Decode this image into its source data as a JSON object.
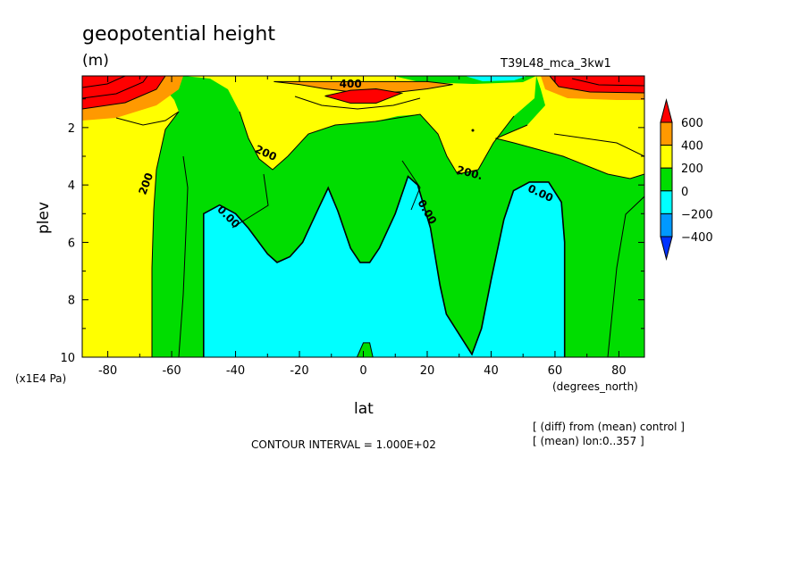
{
  "chart_data": {
    "type": "contour",
    "title": "geopotential height",
    "units": "(m)",
    "run_label": "T39L48_mca_3kw1",
    "xlabel": "lat",
    "x_units": "(degrees_north)",
    "ylabel": "plev",
    "y_units": "(x1E4 Pa)",
    "xlim": [
      -88,
      88
    ],
    "ylim": [
      10,
      0.2
    ],
    "x_ticks": [
      "-80",
      "-60",
      "-40",
      "-20",
      "0",
      "20",
      "40",
      "60",
      "80"
    ],
    "y_ticks": [
      "2",
      "4",
      "6",
      "8",
      "10"
    ],
    "contour_interval": "CONTOUR INTERVAL = 1.000E+02",
    "notes": [
      "[ (diff) from (mean) control ]",
      "[ (mean) lon:0..357 ]"
    ],
    "colorbar": {
      "labels": [
        "600",
        "400",
        "200",
        "0",
        "−200",
        "−400"
      ],
      "colors": [
        "#ff0000",
        "#ff9900",
        "#ffff00",
        "#00dd00",
        "#00ffff",
        "#0099ff",
        "#0033ff"
      ]
    },
    "contour_labels": [
      {
        "text": "400",
        "lat": -4,
        "plev": 0.6
      },
      {
        "text": "200",
        "lat": -31,
        "plev": 3.0
      },
      {
        "text": "200",
        "lat": -67,
        "plev": 4.0
      },
      {
        "text": "200.",
        "lat": 33,
        "plev": 3.7
      },
      {
        "text": "0.00",
        "lat": -43,
        "plev": 5.2
      },
      {
        "text": "0.00",
        "lat": 19,
        "plev": 5.0
      },
      {
        "text": "0.00",
        "lat": 55,
        "plev": 4.4
      }
    ],
    "regions": [
      {
        "level": "400 to 600",
        "color": "#ff9900",
        "points": [
          [
            -28,
            0.4
          ],
          [
            -20,
            0.5
          ],
          [
            -12,
            0.65
          ],
          [
            -4,
            0.75
          ],
          [
            4,
            0.8
          ],
          [
            12,
            0.75
          ],
          [
            20,
            0.65
          ],
          [
            28,
            0.5
          ],
          [
            20,
            0.4
          ],
          [
            -20,
            0.4
          ]
        ]
      },
      {
        "level": "above 600",
        "color": "#ff0000",
        "points": [
          [
            -12,
            0.9
          ],
          [
            -4,
            0.7
          ],
          [
            4,
            0.65
          ],
          [
            12,
            0.8
          ],
          [
            4,
            1.15
          ],
          [
            -4,
            1.15
          ]
        ]
      },
      {
        "level": "below 0",
        "color": "#00ffff",
        "points": [
          [
            -50,
            10
          ],
          [
            -50,
            5.0
          ],
          [
            -45,
            4.7
          ],
          [
            -40,
            5.0
          ],
          [
            -36,
            5.5
          ],
          [
            -30,
            6.4
          ],
          [
            -27,
            6.7
          ],
          [
            -23,
            6.5
          ],
          [
            -19,
            6.0
          ],
          [
            -14,
            4.8
          ],
          [
            -11,
            4.1
          ],
          [
            -8,
            4.9
          ],
          [
            -4,
            6.2
          ],
          [
            -1,
            6.7
          ],
          [
            2,
            6.7
          ],
          [
            5,
            6.2
          ],
          [
            10,
            5.0
          ],
          [
            14,
            3.7
          ],
          [
            17,
            4.0
          ],
          [
            21,
            5.5
          ],
          [
            24,
            7.5
          ],
          [
            26,
            8.5
          ],
          [
            30,
            9.2
          ],
          [
            34,
            9.9
          ],
          [
            37,
            9.0
          ],
          [
            40,
            7.3
          ],
          [
            44,
            5.2
          ],
          [
            47,
            4.2
          ],
          [
            52,
            3.9
          ],
          [
            58,
            3.9
          ],
          [
            62,
            4.6
          ],
          [
            63,
            6.0
          ],
          [
            63,
            10
          ]
        ]
      },
      {
        "level": "0 to 200",
        "color": "#00dd00",
        "points": [
          [
            0,
            9.5
          ],
          [
            2,
            9.5
          ],
          [
            3,
            10
          ],
          [
            -2,
            10
          ]
        ]
      }
    ]
  }
}
